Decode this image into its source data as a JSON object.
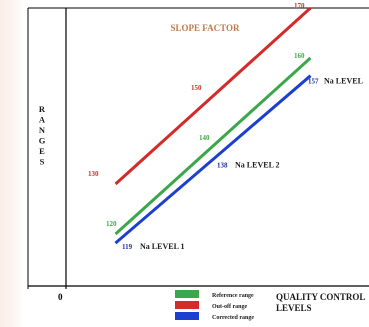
{
  "chart_data": {
    "type": "line",
    "title": "SLOPE FACTOR",
    "ylabel": "RANGES",
    "xlabel": "QUALITY CONTROL LEVELS",
    "origin_label": "0",
    "x": [
      1,
      2,
      3
    ],
    "ylim": [
      100,
      180
    ],
    "grid": false,
    "legend_position": "bottom-center",
    "series": [
      {
        "name": "Out-off range",
        "color": "#d42a2a",
        "values": [
          130,
          150,
          170
        ]
      },
      {
        "name": "Reference range",
        "color": "#3aa84a",
        "values": [
          120,
          140,
          160
        ]
      },
      {
        "name": "Corrected range",
        "color": "#1d3fd0",
        "values": [
          119,
          138,
          157
        ]
      }
    ],
    "level_labels": [
      "Na LEVEL 1",
      "Na LEVEL 2",
      "Na LEVEL"
    ],
    "legend_order": [
      1,
      0,
      2
    ],
    "colors": {
      "title": "#c07a4a",
      "axis": "#000000",
      "label_text": "#1a1a1a",
      "red_value": "#d42a2a",
      "green_value": "#3aa84a",
      "blue_value": "#1d2fa0"
    }
  }
}
